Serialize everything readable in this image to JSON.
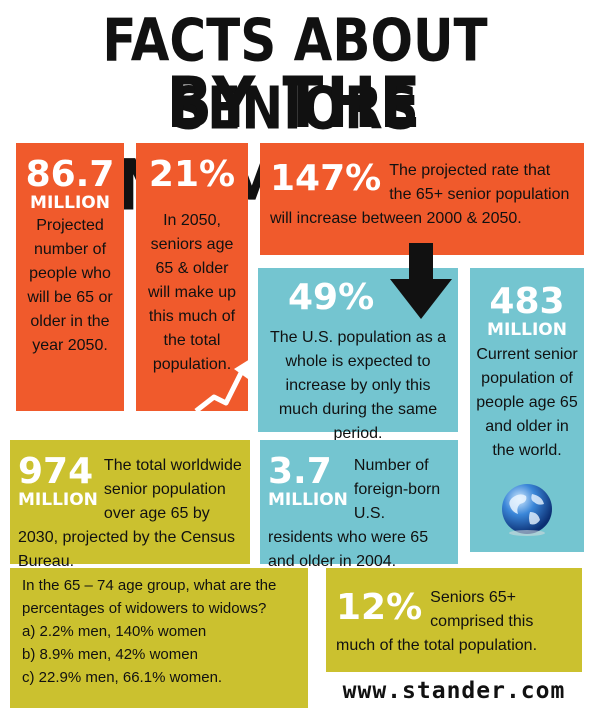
{
  "title": {
    "line1": "FACTS ABOUT SENIORS",
    "line2": "BY THE NUMBERS"
  },
  "facts": {
    "f867": {
      "number": "86.7",
      "unit": "MILLION",
      "text": "Projected number of people who will be 65 or older in the year 2050."
    },
    "f21": {
      "number": "21%",
      "text": "In 2050, seniors age 65 & older will make up this much of the total population."
    },
    "f147": {
      "number": "147%",
      "text": "The projected rate that the 65+ senior population will increase between 2000 & 2050."
    },
    "f49": {
      "number": "49%",
      "text": "The U.S. population as a whole is expected to increase by only this much during the same period."
    },
    "f483": {
      "number": "483",
      "unit": "MILLION",
      "text": "Current senior population of people age 65 and older in the world."
    },
    "f974": {
      "number": "974",
      "unit": "MILLION",
      "text": "The total worldwide senior population over age 65 by 2030, projected by the Census Bureau."
    },
    "f37": {
      "number": "3.7",
      "unit": "MILLION",
      "text": "Number of foreign-born U.S. residents who were 65 and older in 2004."
    },
    "question": {
      "text": "In the 65 – 74 age group, what are the percentages of widowers to widows?",
      "options": [
        "a) 2.2% men, 140% women",
        "b) 8.9% men, 42% women",
        "c) 22.9% men, 66.1% women."
      ]
    },
    "f12": {
      "number": "12%",
      "text": "Seniors 65+ comprised this much of the total population."
    }
  },
  "footer": {
    "url": "www.stander.com"
  },
  "colors": {
    "orange": "#f05a2c",
    "cyan": "#74c5d0",
    "olive": "#cbc12f",
    "white": "#ffffff",
    "dark": "#111111"
  },
  "icons": [
    "growth-arrow-icon",
    "down-arrow-icon",
    "globe-icon"
  ]
}
